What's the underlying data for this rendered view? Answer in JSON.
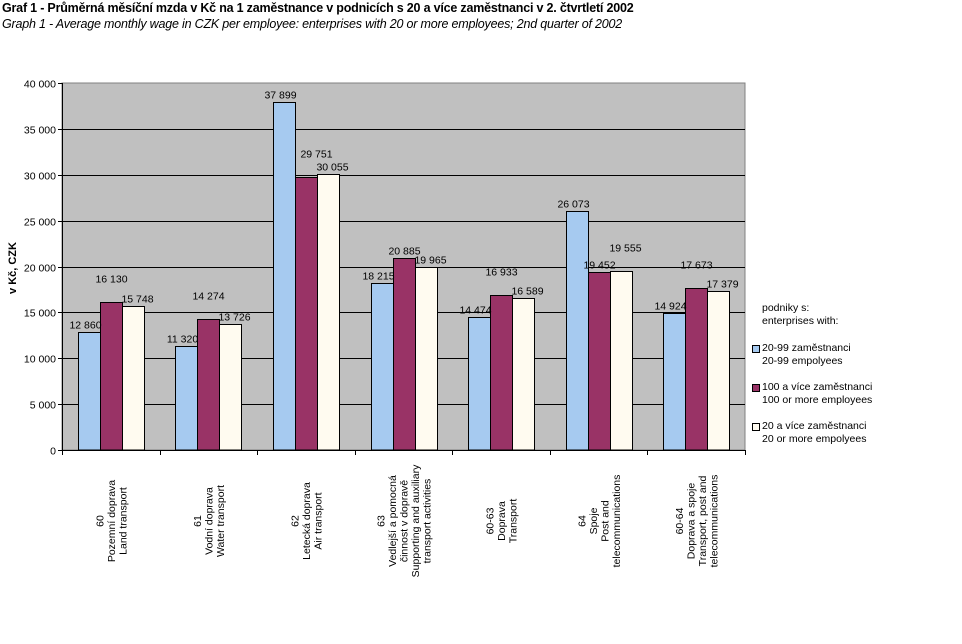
{
  "header": {
    "title_cz": "Graf 1 - Průměrná měsíční mzda v Kč na 1 zaměstnance v podnicích s 20 a více zaměstnanci v 2. čtvrtletí 2002",
    "title_en": "Graph 1 - Average monthly wage in CZK per employee: enterprises with 20 or more employees; 2nd quarter of 2002"
  },
  "legend": {
    "header_cz": "podniky s:",
    "header_en": "enterprises with:"
  },
  "colors": {
    "plot_bg": "#C0C0C0",
    "series_1": "#A6CAF0",
    "series_2": "#993366",
    "series_3": "#FFFBF0"
  },
  "chart_data": {
    "type": "bar",
    "title": "Graf 1 - Průměrná měsíční mzda v Kč na 1 zaměstnance v podnicích s 20 a více zaměstnanci v 2. čtvrtletí 2002",
    "subtitle": "Graph 1 - Average monthly wage in CZK per employee: enterprises with 20 or more employees; 2nd quarter of 2002",
    "xlabel": "",
    "ylabel": "v Kč, CZK",
    "ylim": [
      0,
      40000
    ],
    "yticks": [
      0,
      5000,
      10000,
      15000,
      20000,
      25000,
      30000,
      35000,
      40000
    ],
    "ytick_labels": [
      "0",
      "5 000",
      "10 000",
      "15 000",
      "20 000",
      "25 000",
      "30 000",
      "35 000",
      "40 000"
    ],
    "grid": true,
    "legend_position": "right",
    "categories": [
      [
        "60",
        "Pozemní doprava",
        "Land transport"
      ],
      [
        "61",
        "Vodní doprava",
        "Water transport"
      ],
      [
        "62",
        "Letecká doprava",
        "Air transport"
      ],
      [
        "63",
        "Vedlejší a pomocná",
        "činnost v dopravě",
        "Supporting and auxiliary",
        "transport activities"
      ],
      [
        "60-63",
        "Doprava",
        "Transport"
      ],
      [
        "64",
        "Spoje",
        "Post and",
        "telecommunications"
      ],
      [
        "60-64",
        "Doprava a spoje",
        "Transport, post and",
        "telecommunications"
      ]
    ],
    "series": [
      {
        "name": "20-99 zaměstnanci",
        "name_en": "20-99 empolyees",
        "values": [
          12860,
          11320,
          37899,
          18215,
          14474,
          26073,
          14924
        ],
        "labels": [
          "12 860",
          "11 320",
          "37 899",
          "18 215",
          "14 474",
          "26 073",
          "14 924"
        ]
      },
      {
        "name": "100 a více zaměstnanci",
        "name_en": "100 or more employees",
        "values": [
          16130,
          14274,
          29751,
          20885,
          16933,
          19452,
          17673
        ],
        "labels": [
          "16 130",
          "14 274",
          "29 751",
          "20 885",
          "16 933",
          "19 452",
          "17 673"
        ]
      },
      {
        "name": "20 a více zaměstnanci",
        "name_en": "20 or more empolyees",
        "values": [
          15748,
          13726,
          30055,
          19965,
          16589,
          19555,
          17379
        ],
        "labels": [
          "15 748",
          "13 726",
          "30 055",
          "19 965",
          "16 589",
          "19 555",
          "17 379"
        ]
      }
    ]
  }
}
